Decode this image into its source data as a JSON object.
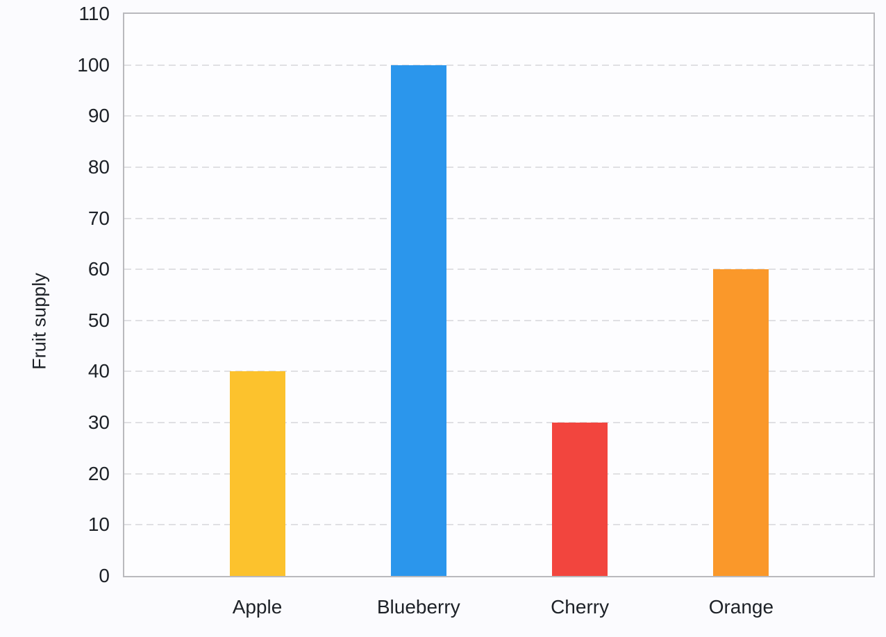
{
  "chart_data": {
    "type": "bar",
    "categories": [
      "Apple",
      "Blueberry",
      "Cherry",
      "Orange"
    ],
    "values": [
      40,
      100,
      30,
      60
    ],
    "bar_colors": [
      "#fcc22d",
      "#2b96ec",
      "#f2453e",
      "#fa982a"
    ],
    "title": "",
    "xlabel": "",
    "ylabel": "Fruit supply",
    "ylim": [
      0,
      110
    ],
    "yticks": [
      0,
      10,
      20,
      30,
      40,
      50,
      60,
      70,
      80,
      90,
      100,
      110
    ],
    "grid": "horizontal-dashed",
    "legend": "none"
  },
  "colors": {
    "background": "#fbfbfe",
    "plot_background": "#fdfdff",
    "axis_border": "#b9b9bd",
    "gridline": "#e0e0e3",
    "text": "#1d2127"
  }
}
